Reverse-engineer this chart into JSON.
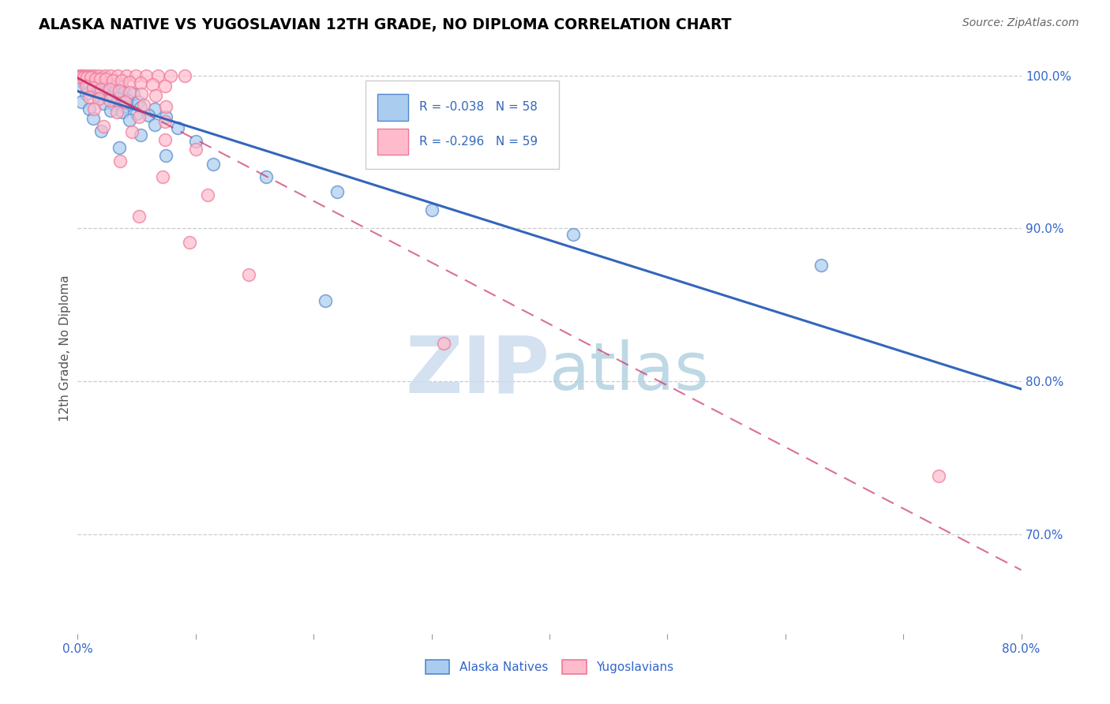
{
  "title": "ALASKA NATIVE VS YUGOSLAVIAN 12TH GRADE, NO DIPLOMA CORRELATION CHART",
  "source": "Source: ZipAtlas.com",
  "ylabel": "12th Grade, No Diploma",
  "legend_blue_label": "Alaska Natives",
  "legend_pink_label": "Yugoslavians",
  "R_blue": -0.038,
  "N_blue": 58,
  "R_pink": -0.296,
  "N_pink": 59,
  "blue_fill": "#aaccee",
  "blue_edge": "#5588cc",
  "pink_fill": "#ffbbcc",
  "pink_edge": "#ee7799",
  "trendline_blue": "#3366bb",
  "trendline_pink": "#cc3366",
  "xlim": [
    0.0,
    0.8
  ],
  "ylim": [
    0.635,
    1.008
  ],
  "blue_points": [
    [
      0.001,
      0.999
    ],
    [
      0.003,
      0.999
    ],
    [
      0.005,
      0.999
    ],
    [
      0.007,
      0.999
    ],
    [
      0.009,
      0.999
    ],
    [
      0.012,
      0.999
    ],
    [
      0.016,
      0.999
    ],
    [
      0.021,
      0.999
    ],
    [
      0.002,
      0.997
    ],
    [
      0.006,
      0.997
    ],
    [
      0.01,
      0.996
    ],
    [
      0.015,
      0.996
    ],
    [
      0.019,
      0.995
    ],
    [
      0.024,
      0.995
    ],
    [
      0.03,
      0.994
    ],
    [
      0.037,
      0.993
    ],
    [
      0.004,
      0.993
    ],
    [
      0.009,
      0.992
    ],
    [
      0.014,
      0.991
    ],
    [
      0.018,
      0.991
    ],
    [
      0.025,
      0.99
    ],
    [
      0.032,
      0.99
    ],
    [
      0.039,
      0.989
    ],
    [
      0.047,
      0.988
    ],
    [
      0.007,
      0.988
    ],
    [
      0.018,
      0.987
    ],
    [
      0.026,
      0.986
    ],
    [
      0.034,
      0.985
    ],
    [
      0.042,
      0.984
    ],
    [
      0.051,
      0.983
    ],
    [
      0.003,
      0.983
    ],
    [
      0.022,
      0.982
    ],
    [
      0.031,
      0.981
    ],
    [
      0.04,
      0.98
    ],
    [
      0.053,
      0.979
    ],
    [
      0.065,
      0.978
    ],
    [
      0.01,
      0.978
    ],
    [
      0.028,
      0.977
    ],
    [
      0.038,
      0.976
    ],
    [
      0.05,
      0.975
    ],
    [
      0.06,
      0.974
    ],
    [
      0.075,
      0.973
    ],
    [
      0.013,
      0.972
    ],
    [
      0.044,
      0.971
    ],
    [
      0.065,
      0.968
    ],
    [
      0.085,
      0.966
    ],
    [
      0.02,
      0.964
    ],
    [
      0.053,
      0.961
    ],
    [
      0.1,
      0.957
    ],
    [
      0.035,
      0.953
    ],
    [
      0.075,
      0.948
    ],
    [
      0.115,
      0.942
    ],
    [
      0.16,
      0.934
    ],
    [
      0.22,
      0.924
    ],
    [
      0.3,
      0.912
    ],
    [
      0.42,
      0.896
    ],
    [
      0.63,
      0.876
    ],
    [
      0.21,
      0.853
    ]
  ],
  "pink_points": [
    [
      0.001,
      1.0
    ],
    [
      0.003,
      1.0
    ],
    [
      0.005,
      1.0
    ],
    [
      0.008,
      1.0
    ],
    [
      0.011,
      1.0
    ],
    [
      0.014,
      1.0
    ],
    [
      0.018,
      1.0
    ],
    [
      0.023,
      1.0
    ],
    [
      0.028,
      1.0
    ],
    [
      0.034,
      1.0
    ],
    [
      0.041,
      1.0
    ],
    [
      0.049,
      1.0
    ],
    [
      0.058,
      1.0
    ],
    [
      0.068,
      1.0
    ],
    [
      0.079,
      1.0
    ],
    [
      0.091,
      1.0
    ],
    [
      0.002,
      0.999
    ],
    [
      0.005,
      0.999
    ],
    [
      0.008,
      0.999
    ],
    [
      0.011,
      0.999
    ],
    [
      0.015,
      0.998
    ],
    [
      0.019,
      0.998
    ],
    [
      0.024,
      0.998
    ],
    [
      0.03,
      0.997
    ],
    [
      0.037,
      0.997
    ],
    [
      0.044,
      0.996
    ],
    [
      0.053,
      0.995
    ],
    [
      0.063,
      0.994
    ],
    [
      0.074,
      0.993
    ],
    [
      0.007,
      0.993
    ],
    [
      0.013,
      0.992
    ],
    [
      0.02,
      0.991
    ],
    [
      0.027,
      0.991
    ],
    [
      0.035,
      0.99
    ],
    [
      0.044,
      0.989
    ],
    [
      0.054,
      0.988
    ],
    [
      0.066,
      0.987
    ],
    [
      0.01,
      0.986
    ],
    [
      0.018,
      0.985
    ],
    [
      0.027,
      0.984
    ],
    [
      0.04,
      0.983
    ],
    [
      0.056,
      0.981
    ],
    [
      0.075,
      0.98
    ],
    [
      0.014,
      0.978
    ],
    [
      0.033,
      0.976
    ],
    [
      0.052,
      0.973
    ],
    [
      0.074,
      0.97
    ],
    [
      0.022,
      0.967
    ],
    [
      0.046,
      0.963
    ],
    [
      0.074,
      0.958
    ],
    [
      0.1,
      0.952
    ],
    [
      0.036,
      0.944
    ],
    [
      0.072,
      0.934
    ],
    [
      0.11,
      0.922
    ],
    [
      0.052,
      0.908
    ],
    [
      0.095,
      0.891
    ],
    [
      0.145,
      0.87
    ],
    [
      0.31,
      0.825
    ],
    [
      0.73,
      0.738
    ]
  ],
  "trendline_blue_slope": -0.038,
  "trendline_pink_slope": -0.296
}
